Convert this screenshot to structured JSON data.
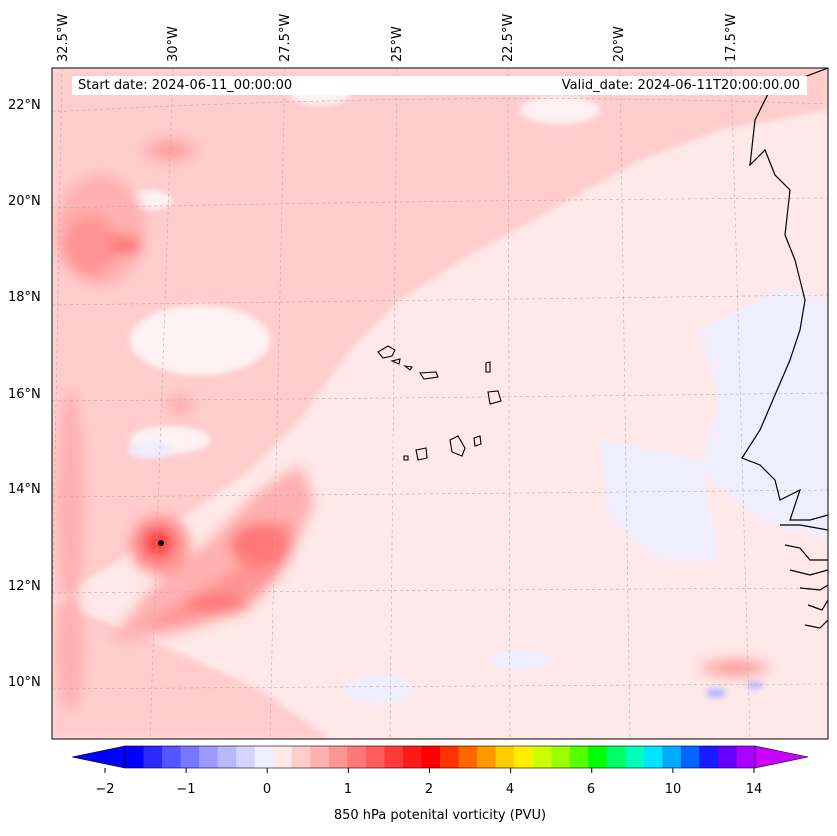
{
  "map": {
    "start_date": "Start date: 2024-06-11_00:00:00",
    "valid_date": "Valid_date: 2024-06-11T20:00:00.00",
    "lon_labels": [
      "32.5°W",
      "30°W",
      "27.5°W",
      "25°W",
      "22.5°W",
      "20°W",
      "17.5°W"
    ],
    "lat_labels": [
      "22°N",
      "20°N",
      "18°N",
      "16°N",
      "14°N",
      "12°N",
      "10°N"
    ],
    "variable": "850 hPa potential vorticity",
    "features": [
      "Cape Verde islands",
      "West African coastline",
      "vorticity maximum near 12.9°N 29.6°W"
    ]
  },
  "colorbar": {
    "title": "850 hPa potenital vorticity (PVU)",
    "ticks": [
      "−2",
      "−1",
      "0",
      "1",
      "2",
      "4",
      "6",
      "10",
      "14"
    ],
    "colors": [
      "#0000ff",
      "#2a2aff",
      "#5555ff",
      "#7878ff",
      "#9b9bff",
      "#b8b8ff",
      "#d4d4ff",
      "#eeeeff",
      "#ffe8e8",
      "#ffcccc",
      "#ffb0b0",
      "#ff9494",
      "#ff7878",
      "#ff5c5c",
      "#ff3838",
      "#ff1a1a",
      "#ff0000",
      "#ff3300",
      "#ff6600",
      "#ff9900",
      "#ffcc00",
      "#ffee00",
      "#ccff00",
      "#99ff00",
      "#55ff00",
      "#00ff00",
      "#00ff66",
      "#00ffbb",
      "#00e5ff",
      "#00aaff",
      "#0066ff",
      "#1a1aff",
      "#6600ff",
      "#aa00ff"
    ],
    "extend_low_color": "#0000ff",
    "extend_high_color": "#cc00ff"
  }
}
